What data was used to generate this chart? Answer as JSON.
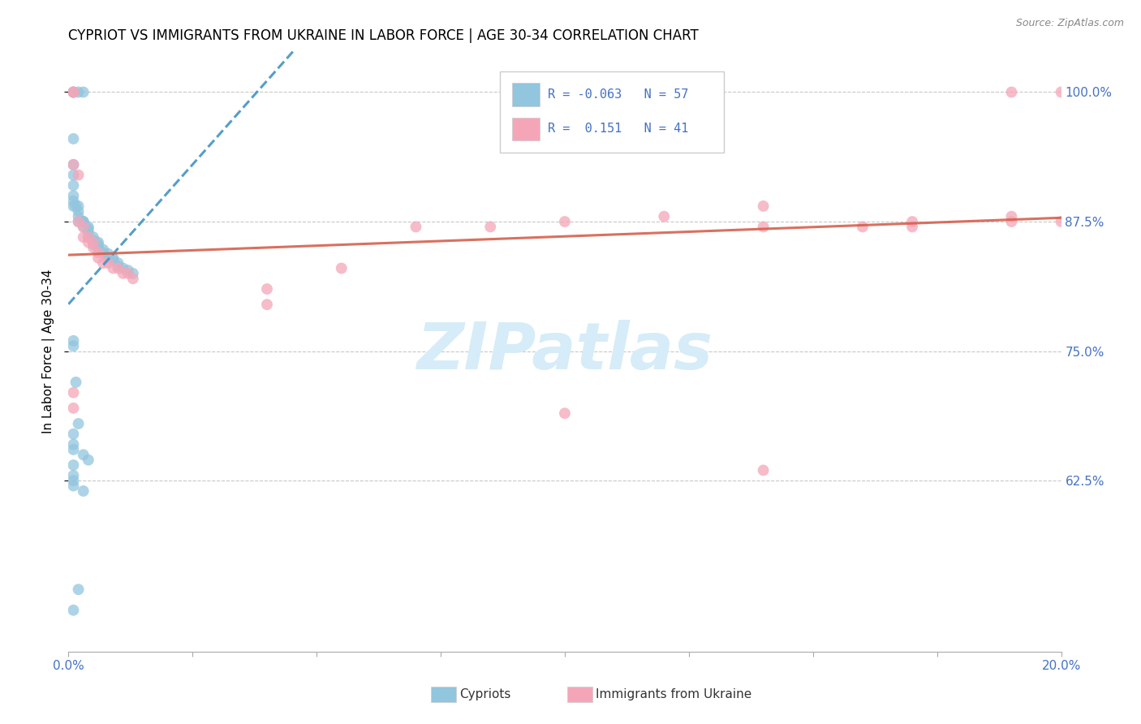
{
  "title": "CYPRIOT VS IMMIGRANTS FROM UKRAINE IN LABOR FORCE | AGE 30-34 CORRELATION CHART",
  "source": "Source: ZipAtlas.com",
  "ylabel": "In Labor Force | Age 30-34",
  "xlim": [
    0.0,
    0.2
  ],
  "ylim": [
    0.46,
    1.04
  ],
  "ytick_positions": [
    0.625,
    0.75,
    0.875,
    1.0
  ],
  "ytick_labels": [
    "62.5%",
    "75.0%",
    "87.5%",
    "100.0%"
  ],
  "blue_color": "#92c5de",
  "pink_color": "#f4a6b8",
  "trend_blue_color": "#4393c3",
  "trend_pink_color": "#d6604d",
  "watermark_text": "ZIPatlas",
  "watermark_color": "#d6ecf8",
  "cypriot_x": [
    0.001,
    0.001,
    0.002,
    0.003,
    0.001,
    0.001,
    0.001,
    0.001,
    0.001,
    0.001,
    0.001,
    0.0015,
    0.002,
    0.002,
    0.002,
    0.002,
    0.003,
    0.003,
    0.003,
    0.003,
    0.004,
    0.004,
    0.004,
    0.004,
    0.005,
    0.005,
    0.005,
    0.005,
    0.006,
    0.006,
    0.006,
    0.007,
    0.007,
    0.008,
    0.008,
    0.009,
    0.009,
    0.01,
    0.01,
    0.011,
    0.012,
    0.013,
    0.001,
    0.001,
    0.0015,
    0.002,
    0.003,
    0.004,
    0.001,
    0.001,
    0.001,
    0.001,
    0.003,
    0.001,
    0.001,
    0.001,
    0.002,
    0.001
  ],
  "cypriot_y": [
    1.0,
    1.0,
    1.0,
    1.0,
    0.955,
    0.93,
    0.92,
    0.91,
    0.9,
    0.895,
    0.89,
    0.89,
    0.89,
    0.885,
    0.88,
    0.875,
    0.875,
    0.875,
    0.875,
    0.87,
    0.87,
    0.868,
    0.865,
    0.86,
    0.86,
    0.857,
    0.855,
    0.853,
    0.855,
    0.853,
    0.85,
    0.848,
    0.845,
    0.844,
    0.84,
    0.84,
    0.838,
    0.835,
    0.832,
    0.83,
    0.828,
    0.825,
    0.76,
    0.755,
    0.72,
    0.68,
    0.65,
    0.645,
    0.64,
    0.63,
    0.625,
    0.62,
    0.615,
    0.67,
    0.66,
    0.655,
    0.52,
    0.5
  ],
  "ukraine_x": [
    0.001,
    0.001,
    0.001,
    0.002,
    0.002,
    0.003,
    0.003,
    0.004,
    0.004,
    0.005,
    0.005,
    0.006,
    0.006,
    0.007,
    0.008,
    0.009,
    0.01,
    0.011,
    0.012,
    0.013,
    0.04,
    0.04,
    0.055,
    0.07,
    0.085,
    0.1,
    0.12,
    0.14,
    0.14,
    0.16,
    0.17,
    0.17,
    0.19,
    0.19,
    0.19,
    0.2,
    0.2,
    0.001,
    0.001,
    0.1,
    0.14
  ],
  "ukraine_y": [
    1.0,
    1.0,
    0.93,
    0.92,
    0.875,
    0.87,
    0.86,
    0.86,
    0.855,
    0.855,
    0.85,
    0.845,
    0.84,
    0.835,
    0.835,
    0.83,
    0.83,
    0.825,
    0.825,
    0.82,
    0.81,
    0.795,
    0.83,
    0.87,
    0.87,
    0.875,
    0.88,
    0.89,
    0.87,
    0.87,
    0.87,
    0.875,
    0.88,
    0.875,
    1.0,
    1.0,
    0.875,
    0.71,
    0.695,
    0.69,
    0.635
  ]
}
